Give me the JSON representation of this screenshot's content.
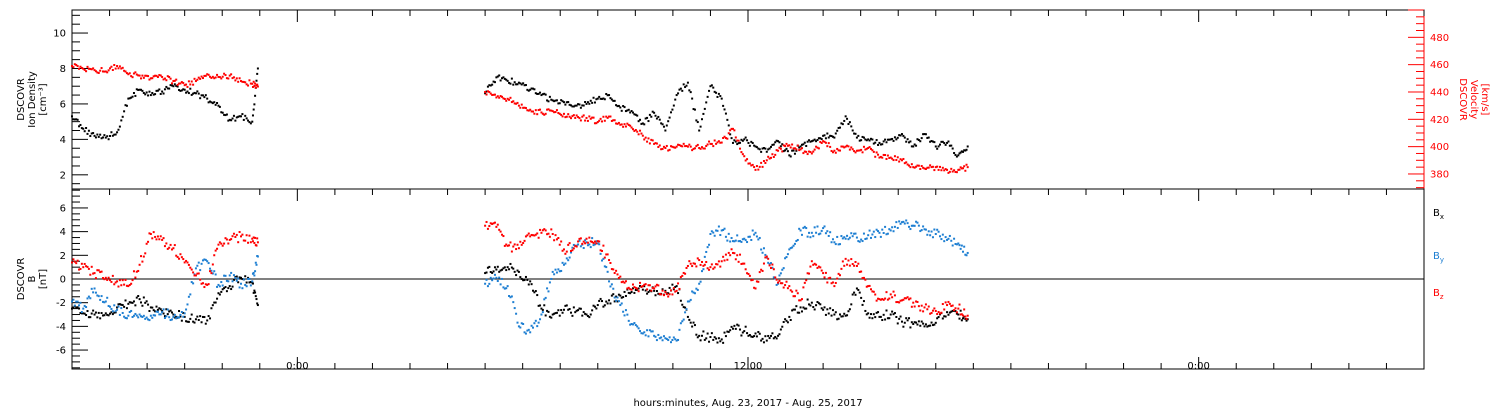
{
  "xlabel": "hours:minutes, Aug. 23, 2017 - Aug. 25, 2017",
  "x_tick_labels": [
    {
      "hour": 6,
      "label": "0:00"
    },
    {
      "hour": 18,
      "label": "12:00"
    },
    {
      "hour": 30,
      "label": "0:00"
    }
  ],
  "colors": {
    "black": "#000000",
    "red": "#ff0000",
    "blue": "#1e7fd2"
  },
  "chart_data": [
    {
      "type": "scatter",
      "panel": "top",
      "x_unit": "hours since 18:00 Aug. 23, 2017",
      "xlim": [
        0,
        36
      ],
      "ylabel_left": [
        "DSCOVR",
        "Ion Density",
        "[cm⁻³]"
      ],
      "ylim_left": [
        1.2,
        11.3
      ],
      "yticks_left": [
        "2",
        "4",
        "6",
        "8",
        "10"
      ],
      "ylabel_right": [
        "DSCOVR",
        "Velocity",
        "[km/s]"
      ],
      "ylim_right": [
        369,
        500
      ],
      "yticks_right": [
        "380",
        "400",
        "420",
        "440",
        "460",
        "480"
      ],
      "series": [
        {
          "name": "",
          "axis": "left",
          "color": "#000000",
          "x": [
            0,
            0.3,
            0.6,
            0.9,
            1.2,
            1.5,
            1.8,
            2.1,
            2.4,
            2.7,
            3.0,
            3.3,
            3.6,
            3.9,
            4.2,
            4.5,
            4.8,
            4.95,
            11.0,
            11.3,
            11.6,
            11.9,
            12.2,
            12.5,
            12.8,
            13.1,
            13.4,
            13.7,
            14.0,
            14.3,
            14.6,
            14.9,
            15.2,
            15.5,
            15.8,
            16.1,
            16.4,
            16.7,
            17.0,
            17.3,
            17.6,
            17.9,
            18.2,
            18.5,
            18.8,
            19.1,
            19.4,
            19.7,
            20.0,
            20.3,
            20.6,
            20.9,
            21.2,
            21.5,
            21.8,
            22.1,
            22.4,
            22.7,
            23.0,
            23.3,
            23.6,
            23.85
          ],
          "y": [
            5.3,
            4.6,
            4.2,
            4.1,
            4.4,
            6.3,
            6.8,
            6.5,
            6.7,
            7.0,
            6.8,
            6.6,
            6.3,
            5.9,
            5.1,
            5.3,
            5.0,
            8.0,
            6.6,
            7.5,
            7.3,
            7.2,
            6.8,
            6.5,
            6.2,
            6.1,
            5.9,
            6.0,
            6.3,
            6.5,
            5.8,
            5.6,
            4.9,
            5.5,
            4.5,
            6.5,
            7.2,
            4.5,
            7.0,
            6.3,
            3.8,
            4.0,
            3.6,
            3.3,
            3.9,
            3.1,
            3.6,
            3.9,
            4.2,
            4.1,
            5.3,
            4.1,
            4.0,
            3.8,
            4.0,
            4.3,
            3.6,
            4.3,
            3.6,
            3.8,
            3.1,
            3.6
          ]
        },
        {
          "name": "",
          "axis": "right",
          "color": "#ff0000",
          "x": [
            0,
            0.3,
            0.6,
            0.9,
            1.2,
            1.5,
            1.8,
            2.1,
            2.4,
            2.7,
            3.0,
            3.3,
            3.6,
            3.9,
            4.2,
            4.5,
            4.8,
            4.95,
            11.0,
            11.3,
            11.6,
            11.9,
            12.2,
            12.5,
            12.8,
            13.1,
            13.4,
            13.7,
            14.0,
            14.3,
            14.6,
            14.9,
            15.2,
            15.5,
            15.8,
            16.1,
            16.4,
            16.7,
            17.0,
            17.3,
            17.6,
            17.9,
            18.2,
            18.5,
            18.8,
            19.1,
            19.4,
            19.7,
            20.0,
            20.3,
            20.6,
            20.9,
            21.2,
            21.5,
            21.8,
            22.1,
            22.4,
            22.7,
            23.0,
            23.3,
            23.6,
            23.85
          ],
          "y": [
            459,
            457,
            456,
            455,
            459,
            453,
            452,
            450,
            451,
            448,
            445,
            448,
            453,
            451,
            452,
            448,
            446,
            444,
            440,
            436,
            435,
            430,
            427,
            425,
            426,
            424,
            421,
            421,
            418,
            422,
            416,
            414,
            408,
            402,
            399,
            400,
            400,
            399,
            402,
            403,
            413,
            393,
            383,
            390,
            397,
            401,
            398,
            395,
            404,
            397,
            400,
            397,
            399,
            392,
            392,
            390,
            385,
            384,
            385,
            383,
            383,
            385
          ]
        }
      ]
    },
    {
      "type": "scatter",
      "panel": "bottom",
      "x_unit": "hours since 18:00 Aug. 23, 2017",
      "xlim": [
        0,
        36
      ],
      "ylabel_left": [
        "DSCOVR",
        "B",
        "[nT]"
      ],
      "ylim_left": [
        -7.6,
        7.6
      ],
      "yticks_left": [
        "-6",
        "-4",
        "-2",
        "0",
        "2",
        "4",
        "6"
      ],
      "series": [
        {
          "name": "Bx",
          "color": "#000000",
          "x": [
            0,
            0.3,
            0.6,
            0.9,
            1.2,
            1.5,
            1.8,
            2.1,
            2.4,
            2.7,
            3.0,
            3.3,
            3.6,
            3.9,
            4.2,
            4.5,
            4.8,
            4.95,
            11.0,
            11.3,
            11.6,
            11.9,
            12.2,
            12.5,
            12.8,
            13.1,
            13.4,
            13.7,
            14.0,
            14.3,
            14.6,
            14.9,
            15.2,
            15.5,
            15.8,
            16.1,
            16.4,
            16.7,
            17.0,
            17.3,
            17.6,
            17.9,
            18.2,
            18.5,
            18.8,
            19.1,
            19.4,
            19.7,
            20.0,
            20.3,
            20.6,
            20.9,
            21.2,
            21.5,
            21.8,
            22.1,
            22.4,
            22.7,
            23.0,
            23.3,
            23.6,
            23.85
          ],
          "y": [
            -2.5,
            -2.9,
            -3.0,
            -2.9,
            -2.4,
            -2.1,
            -1.7,
            -2.4,
            -2.7,
            -3.0,
            -3.2,
            -3.4,
            -3.5,
            -1.2,
            -0.6,
            0.1,
            -0.3,
            -2.2,
            0.5,
            0.8,
            1.0,
            0.6,
            -0.2,
            -2.5,
            -3.0,
            -2.6,
            -2.8,
            -3.0,
            -2.2,
            -1.8,
            -1.4,
            -1.1,
            -0.9,
            -1.0,
            -1.0,
            -0.6,
            -3.2,
            -4.8,
            -4.9,
            -5.1,
            -4.2,
            -4.4,
            -4.6,
            -5.2,
            -4.8,
            -3.2,
            -2.4,
            -2.0,
            -2.6,
            -3.0,
            -3.1,
            -0.8,
            -2.9,
            -3.2,
            -3.0,
            -3.6,
            -3.8,
            -4.0,
            -3.7,
            -2.8,
            -3.0,
            -3.4
          ]
        },
        {
          "name": "By",
          "color": "#1e7fd2",
          "x": [
            0,
            0.3,
            0.6,
            0.9,
            1.2,
            1.5,
            1.8,
            2.1,
            2.4,
            2.7,
            3.0,
            3.3,
            3.6,
            3.9,
            4.2,
            4.5,
            4.8,
            4.95,
            11.0,
            11.3,
            11.6,
            11.9,
            12.2,
            12.5,
            12.8,
            13.1,
            13.4,
            13.7,
            14.0,
            14.3,
            14.6,
            14.9,
            15.2,
            15.5,
            15.8,
            16.1,
            16.4,
            16.7,
            17.0,
            17.3,
            17.6,
            17.9,
            18.2,
            18.5,
            18.8,
            19.1,
            19.4,
            19.7,
            20.0,
            20.3,
            20.6,
            20.9,
            21.2,
            21.5,
            21.8,
            22.1,
            22.4,
            22.7,
            23.0,
            23.3,
            23.6,
            23.85
          ],
          "y": [
            -1.9,
            -2.5,
            -0.8,
            -1.9,
            -2.6,
            -3.1,
            -3.0,
            -3.1,
            -2.8,
            -3.2,
            -2.9,
            0.9,
            1.5,
            -0.5,
            0.3,
            -0.4,
            -0.2,
            1.9,
            -0.4,
            0.1,
            -0.6,
            -4.0,
            -4.5,
            -3.0,
            0.6,
            1.2,
            2.8,
            3.1,
            3.0,
            -0.2,
            -2.2,
            -3.8,
            -4.6,
            -4.8,
            -5.0,
            -5.2,
            -1.9,
            -0.4,
            3.8,
            4.1,
            3.2,
            3.4,
            3.9,
            1.8,
            -0.4,
            2.5,
            4.1,
            3.9,
            4.3,
            3.1,
            3.4,
            3.5,
            3.7,
            3.9,
            4.1,
            4.8,
            4.5,
            4.2,
            3.8,
            3.3,
            3.0,
            2.2
          ]
        },
        {
          "name": "Bz",
          "color": "#ff0000",
          "x": [
            0,
            0.3,
            0.6,
            0.9,
            1.2,
            1.5,
            1.8,
            2.1,
            2.4,
            2.7,
            3.0,
            3.3,
            3.6,
            3.9,
            4.2,
            4.5,
            4.8,
            4.95,
            11.0,
            11.3,
            11.6,
            11.9,
            12.2,
            12.5,
            12.8,
            13.1,
            13.4,
            13.7,
            14.0,
            14.3,
            14.6,
            14.9,
            15.2,
            15.5,
            15.8,
            16.1,
            16.4,
            16.7,
            17.0,
            17.3,
            17.6,
            17.9,
            18.2,
            18.5,
            18.8,
            19.1,
            19.4,
            19.7,
            20.0,
            20.3,
            20.6,
            20.9,
            21.2,
            21.5,
            21.8,
            22.1,
            22.4,
            22.7,
            23.0,
            23.3,
            23.6,
            23.85
          ],
          "y": [
            1.4,
            1.0,
            0.5,
            0.1,
            -0.2,
            -0.6,
            1.2,
            3.8,
            3.3,
            2.6,
            1.4,
            0.3,
            -0.5,
            2.9,
            3.3,
            3.6,
            3.4,
            3.1,
            4.5,
            4.4,
            2.8,
            2.6,
            3.6,
            3.9,
            3.8,
            2.5,
            2.8,
            3.4,
            3.2,
            1.6,
            0.2,
            -0.9,
            -0.6,
            -0.8,
            -1.1,
            -1.0,
            1.1,
            1.6,
            1.0,
            1.5,
            2.2,
            1.3,
            -0.8,
            1.9,
            -0.3,
            -0.6,
            -1.8,
            1.5,
            0.5,
            -0.6,
            1.7,
            1.1,
            -0.6,
            -1.7,
            -1.3,
            -1.8,
            -2.0,
            -2.4,
            -2.7,
            -2.2,
            -2.5,
            -3.1
          ]
        }
      ]
    }
  ]
}
